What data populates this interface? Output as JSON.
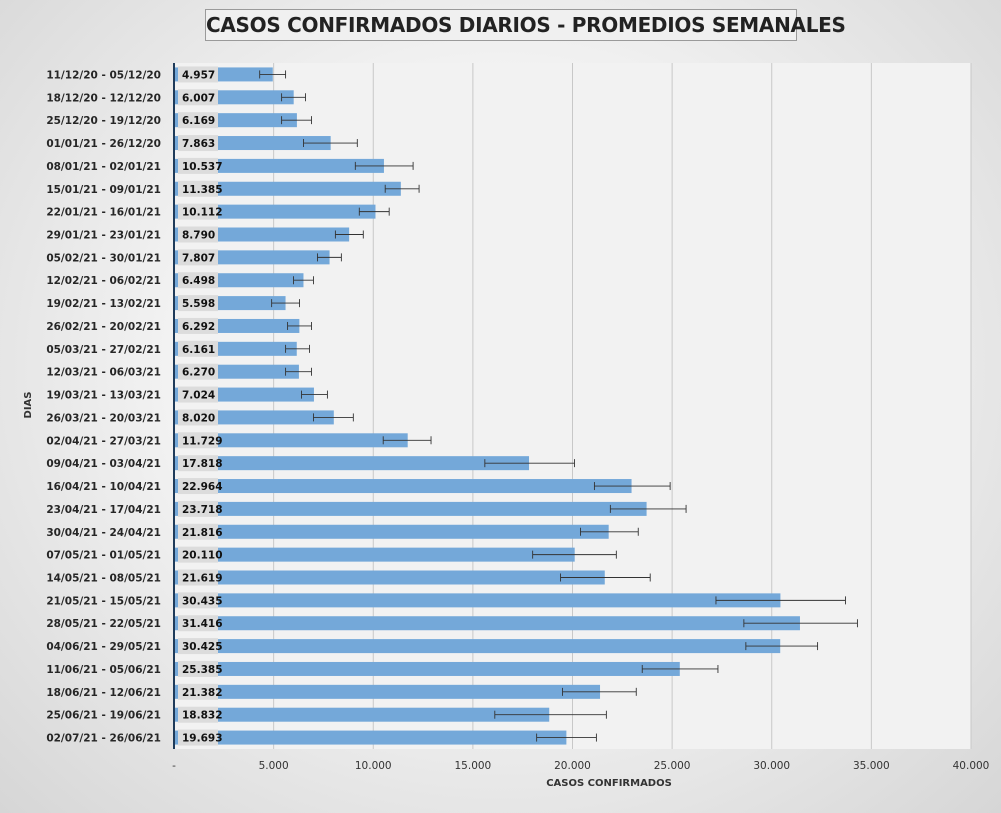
{
  "chart_data": {
    "type": "bar",
    "orientation": "horizontal",
    "title": "CASOS CONFIRMADOS DIARIOS - PROMEDIOS SEMANALES",
    "xlabel": "CASOS CONFIRMADOS",
    "ylabel": "DIAS",
    "xlim": [
      0,
      40000
    ],
    "xticks": [
      0,
      5000,
      10000,
      15000,
      20000,
      25000,
      30000,
      35000,
      40000
    ],
    "xtick_labels": [
      "-",
      "5.000",
      "10.000",
      "15.000",
      "20.000",
      "25.000",
      "30.000",
      "35.000",
      "40.000"
    ],
    "grid": true,
    "bar_color": "#74a8d9",
    "categories": [
      "11/12/20 - 05/12/20",
      "18/12/20 - 12/12/20",
      "25/12/20 - 19/12/20",
      "01/01/21 - 26/12/20",
      "08/01/21 - 02/01/21",
      "15/01/21 - 09/01/21",
      "22/01/21 - 16/01/21",
      "29/01/21 - 23/01/21",
      "05/02/21 - 30/01/21",
      "12/02/21 - 06/02/21",
      "19/02/21 - 13/02/21",
      "26/02/21 - 20/02/21",
      "05/03/21 - 27/02/21",
      "12/03/21 - 06/03/21",
      "19/03/21 - 13/03/21",
      "26/03/21 - 20/03/21",
      "02/04/21 - 27/03/21",
      "09/04/21 - 03/04/21",
      "16/04/21 - 10/04/21",
      "23/04/21 - 17/04/21",
      "30/04/21 - 24/04/21",
      "07/05/21 - 01/05/21",
      "14/05/21 - 08/05/21",
      "21/05/21 - 15/05/21",
      "28/05/21 - 22/05/21",
      "04/06/21 - 29/05/21",
      "11/06/21 - 05/06/21",
      "18/06/21 - 12/06/21",
      "25/06/21 - 19/06/21",
      "02/07/21 - 26/06/21"
    ],
    "values": [
      4957,
      6007,
      6169,
      7863,
      10537,
      11385,
      10112,
      8790,
      7807,
      6498,
      5598,
      6292,
      6161,
      6270,
      7024,
      8020,
      11729,
      17818,
      22964,
      23718,
      21816,
      20110,
      21619,
      30435,
      31416,
      30425,
      25385,
      21382,
      18832,
      19693
    ],
    "value_labels": [
      "4.957",
      "6.007",
      "6.169",
      "7.863",
      "10.537",
      "11.385",
      "10.112",
      "8.790",
      "7.807",
      "6.498",
      "5.598",
      "6.292",
      "6.161",
      "6.270",
      "7.024",
      "8.020",
      "11.729",
      "17.818",
      "22.964",
      "23.718",
      "21.816",
      "20.110",
      "21.619",
      "30.435",
      "31.416",
      "30.425",
      "25.385",
      "21.382",
      "18.832",
      "19.693"
    ],
    "error_bars": {
      "low": [
        4300,
        5400,
        5400,
        6500,
        9100,
        10600,
        9300,
        8100,
        7200,
        6000,
        4900,
        5700,
        5600,
        5600,
        6400,
        7000,
        10500,
        15600,
        21100,
        21900,
        20400,
        18000,
        19400,
        27200,
        28600,
        28700,
        23500,
        19500,
        16100,
        18200
      ],
      "high": [
        5600,
        6600,
        6900,
        9200,
        12000,
        12300,
        10800,
        9500,
        8400,
        7000,
        6300,
        6900,
        6800,
        6900,
        7700,
        9000,
        12900,
        20100,
        24900,
        25700,
        23300,
        22200,
        23900,
        33700,
        34300,
        32300,
        27300,
        23200,
        21700,
        21200
      ]
    }
  }
}
